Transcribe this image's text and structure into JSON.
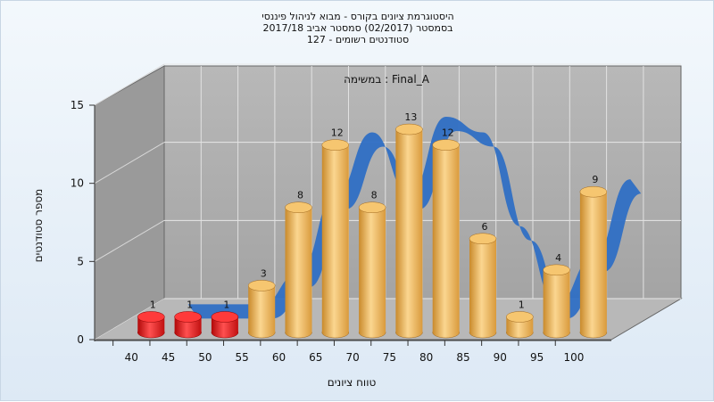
{
  "chart_data": {
    "type": "bar",
    "title_lines": [
      "היסטוגרמת ציונים בקורס - מבוא לניהול פיננסי",
      "בסמסטר  (02/2017)  סמסטר אביב 2017/18",
      "סטודנטים רשומים - 127"
    ],
    "subtitle": "במשימה : Final_A",
    "xlabel": "טווח ציונים",
    "ylabel": "מספר סטודנטים",
    "categories": [
      "40",
      "45",
      "50",
      "55",
      "60",
      "65",
      "70",
      "75",
      "80",
      "85",
      "90",
      "95",
      "100"
    ],
    "values": [
      1,
      1,
      1,
      3,
      8,
      12,
      8,
      13,
      12,
      6,
      1,
      4,
      9
    ],
    "ylim": [
      0,
      15
    ],
    "yticks": [
      0,
      5,
      10,
      15
    ],
    "grid": true,
    "colors": {
      "fail": "#e01010",
      "pass": "#f0b050",
      "curve": "#2f6fc4",
      "wall": "#a8a8a8",
      "floor": "#b4b4b4"
    }
  }
}
